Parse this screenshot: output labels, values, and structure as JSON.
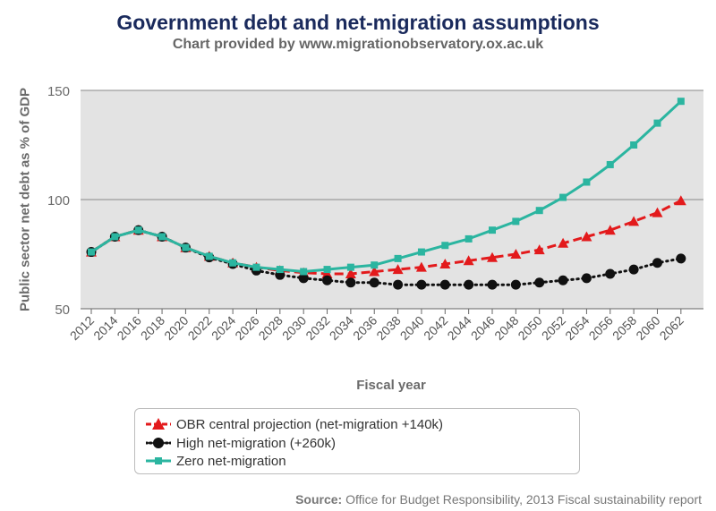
{
  "header": {
    "title": "Government debt and net-migration assumptions",
    "subtitle": "Chart provided by www.migrationobservatory.ox.ac.uk"
  },
  "source": {
    "label": "Source:",
    "text": "Office for Budget Responsibility, 2013 Fiscal sustainability report"
  },
  "chart_data": {
    "type": "line",
    "title": "Government debt and net-migration assumptions",
    "subtitle": "Chart provided by www.migrationobservatory.ox.ac.uk",
    "xlabel": "Fiscal year",
    "ylabel": "Public sector net debt as % of GDP",
    "ylim": [
      50,
      150
    ],
    "yticks": [
      50,
      100,
      150
    ],
    "xlim": [
      2012,
      2063
    ],
    "xticks": [
      2012,
      2014,
      2016,
      2018,
      2020,
      2022,
      2024,
      2026,
      2028,
      2030,
      2032,
      2034,
      2036,
      2038,
      2040,
      2042,
      2044,
      2046,
      2048,
      2050,
      2052,
      2054,
      2056,
      2058,
      2060,
      2062
    ],
    "grid": "horizontal",
    "legend_position": "bottom",
    "x": [
      2012,
      2014,
      2016,
      2018,
      2020,
      2022,
      2024,
      2026,
      2028,
      2030,
      2032,
      2034,
      2036,
      2038,
      2040,
      2042,
      2044,
      2046,
      2048,
      2050,
      2052,
      2054,
      2056,
      2058,
      2060,
      2062
    ],
    "series": [
      {
        "name": "OBR central projection (net-migration +140k)",
        "color": "#e31a1c",
        "marker": "triangle",
        "dash": "dashed",
        "values": [
          76,
          83,
          86,
          83,
          78,
          74,
          71,
          69,
          67.5,
          66.5,
          66,
          66,
          67,
          68,
          69,
          70.5,
          72,
          73.5,
          75,
          77,
          80,
          83,
          86,
          90,
          94,
          99.5
        ]
      },
      {
        "name": "High net-migration (+260k)",
        "color": "#111111",
        "marker": "circle",
        "dash": "dotted",
        "values": [
          76,
          83,
          86,
          83,
          78,
          73.5,
          70.5,
          67.5,
          65.5,
          64,
          63,
          62,
          62,
          61,
          61,
          61,
          61,
          61,
          61,
          62,
          63,
          64,
          66,
          68,
          71,
          73
        ]
      },
      {
        "name": "Zero net-migration",
        "color": "#2bb5a0",
        "marker": "square",
        "dash": "solid",
        "values": [
          76,
          83,
          86,
          83,
          78,
          74,
          71,
          69,
          68,
          67,
          68,
          69,
          70,
          73,
          76,
          79,
          82,
          86,
          90,
          95,
          101,
          108,
          116,
          125,
          135,
          145
        ]
      }
    ]
  }
}
